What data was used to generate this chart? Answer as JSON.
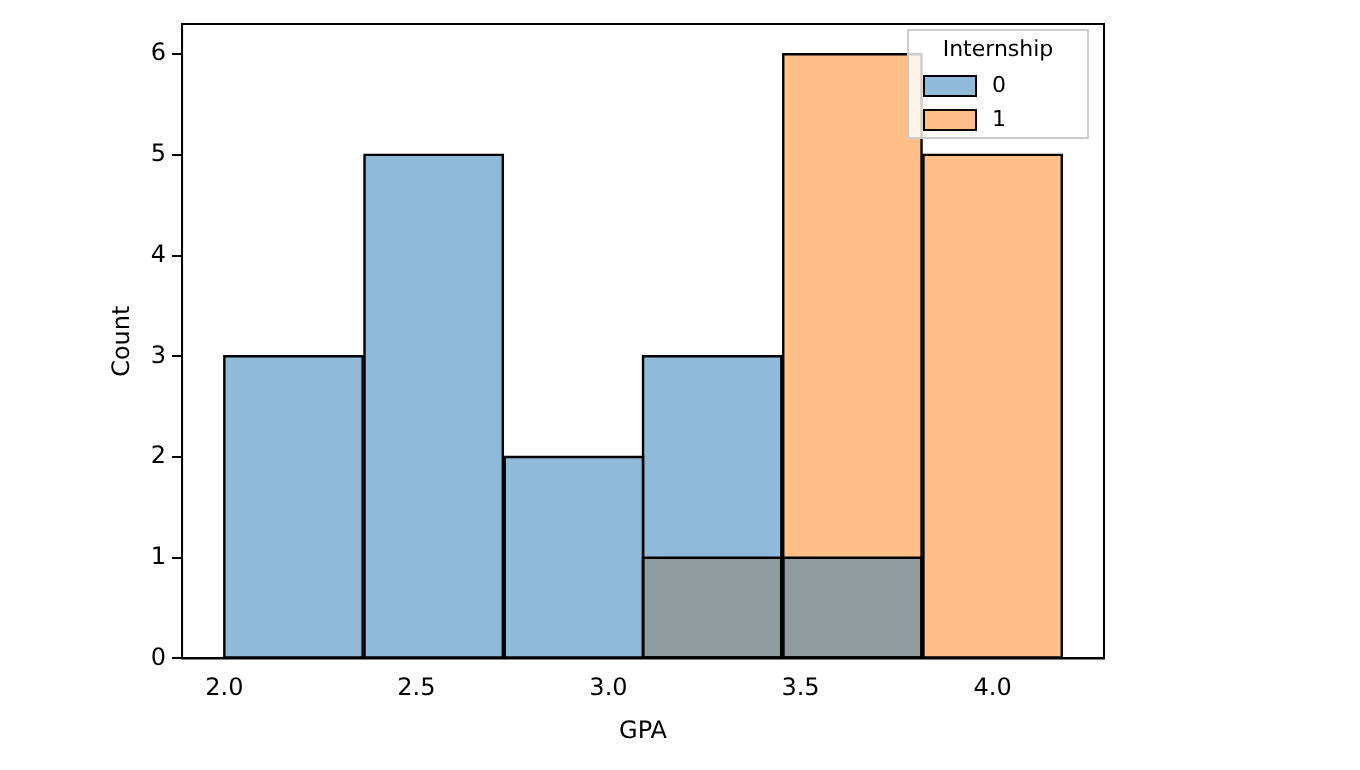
{
  "chart_data": {
    "type": "histogram",
    "xlabel": "GPA",
    "ylabel": "Count",
    "legend_title": "Internship",
    "bins": [
      2.0,
      2.36,
      2.73,
      3.09,
      3.45,
      3.82,
      4.18
    ],
    "series": [
      {
        "name": "0",
        "color": "#1f77b4",
        "values": [
          3,
          5,
          2,
          3,
          1,
          0
        ]
      },
      {
        "name": "1",
        "color": "#ff7f0e",
        "values": [
          0,
          0,
          0,
          1,
          6,
          5
        ]
      }
    ],
    "xlim": [
      1.89,
      4.29
    ],
    "xticks": [
      {
        "value": 2.0,
        "label": "2.0"
      },
      {
        "value": 2.5,
        "label": "2.5"
      },
      {
        "value": 3.0,
        "label": "3.0"
      },
      {
        "value": 3.5,
        "label": "3.5"
      },
      {
        "value": 4.0,
        "label": "4.0"
      }
    ],
    "ylim": [
      0,
      6.3
    ],
    "yticks": [
      0,
      1,
      2,
      3,
      4,
      5,
      6
    ],
    "grid": false,
    "legend": "top right"
  }
}
